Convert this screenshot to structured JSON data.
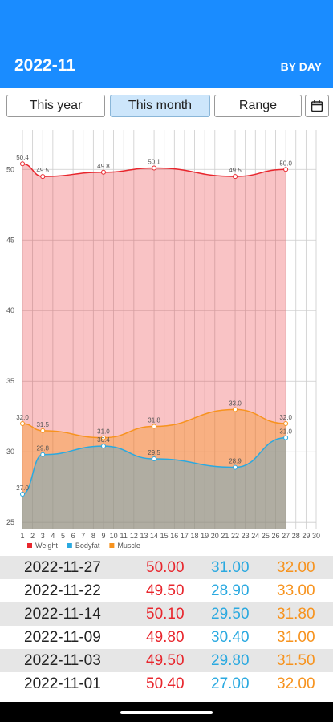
{
  "header": {
    "title": "2022-11",
    "mode": "BY DAY"
  },
  "range_buttons": [
    "This year",
    "This month",
    "Range"
  ],
  "chart_data": {
    "type": "line",
    "x": [
      1,
      3,
      9,
      14,
      22,
      27
    ],
    "xlim": [
      1,
      30
    ],
    "xticks": [
      1,
      2,
      3,
      4,
      5,
      6,
      7,
      8,
      9,
      10,
      11,
      12,
      13,
      14,
      15,
      16,
      17,
      18,
      19,
      20,
      21,
      22,
      23,
      24,
      25,
      26,
      27,
      28,
      29,
      30
    ],
    "ylim": [
      24.5,
      52.8
    ],
    "yticks": [
      25,
      30,
      35,
      40,
      45,
      50
    ],
    "grid": true,
    "legend": "bottom-left",
    "series": [
      {
        "name": "Weight",
        "color": "#e8262d",
        "values": [
          50.4,
          49.5,
          49.8,
          50.1,
          49.5,
          50.0
        ],
        "value_labels": [
          "50.4",
          "49.5",
          "49.8",
          "50.1",
          "49.5",
          "50.0"
        ]
      },
      {
        "name": "Bodyfat",
        "color": "#2aa9e0",
        "values": [
          27.0,
          29.8,
          30.4,
          29.5,
          28.9,
          31.0
        ],
        "value_labels": [
          "27.0",
          "29.8",
          "30.4",
          "29.5",
          "28.9",
          "31.0"
        ]
      },
      {
        "name": "Muscle",
        "color": "#f7931e",
        "values": [
          32.0,
          31.5,
          31.0,
          31.8,
          33.0,
          32.0
        ],
        "value_labels": [
          "32.0",
          "31.5",
          "31.0",
          "31.8",
          "33.0",
          "32.0"
        ]
      }
    ]
  },
  "table": {
    "rows": [
      [
        "2022-11-27",
        "50.00",
        "31.00",
        "32.00"
      ],
      [
        "2022-11-22",
        "49.50",
        "28.90",
        "33.00"
      ],
      [
        "2022-11-14",
        "50.10",
        "29.50",
        "31.80"
      ],
      [
        "2022-11-09",
        "49.80",
        "30.40",
        "31.00"
      ],
      [
        "2022-11-03",
        "49.50",
        "29.80",
        "31.50"
      ],
      [
        "2022-11-01",
        "50.40",
        "27.00",
        "32.00"
      ]
    ]
  }
}
